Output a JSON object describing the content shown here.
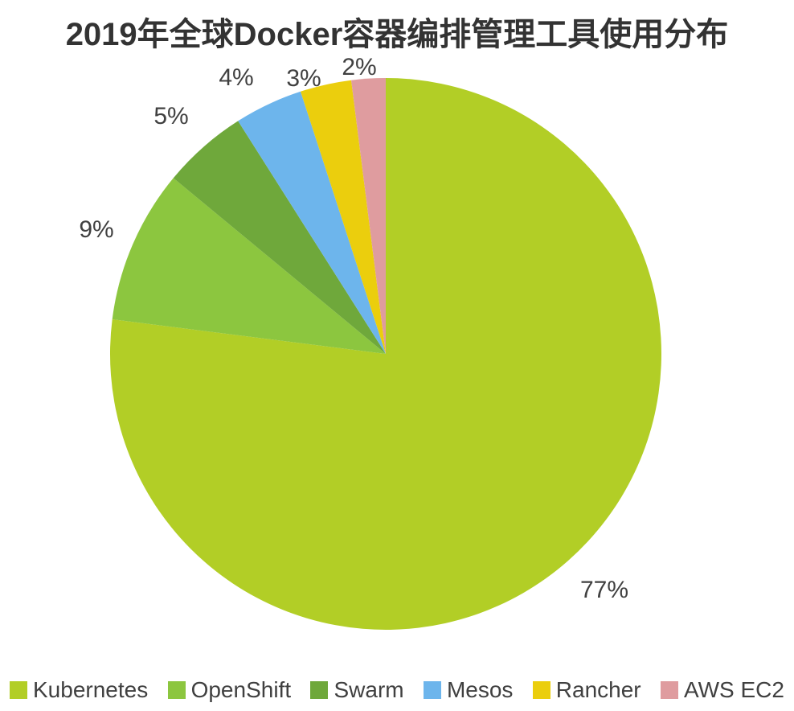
{
  "title": "2019年全球Docker容器编排管理工具使用分布",
  "chart_data": {
    "type": "pie",
    "title": "2019年全球Docker容器编排管理工具使用分布",
    "unit": "%",
    "legend_position": "bottom",
    "start_angle_deg": 0,
    "direction": "clockwise",
    "slices": [
      {
        "name": "Kubernetes",
        "value": 77,
        "label": "77%",
        "color": "#B2CE26"
      },
      {
        "name": "OpenShift",
        "value": 9,
        "label": "9%",
        "color": "#8CC63F"
      },
      {
        "name": "Swarm",
        "value": 5,
        "label": "5%",
        "color": "#6FA83B"
      },
      {
        "name": "Mesos",
        "value": 4,
        "label": "4%",
        "color": "#6DB5EC"
      },
      {
        "name": "Rancher",
        "value": 3,
        "label": "3%",
        "color": "#EBCE0D"
      },
      {
        "name": "AWS EC2",
        "value": 2,
        "label": "2%",
        "color": "#DF9C9F"
      }
    ]
  }
}
